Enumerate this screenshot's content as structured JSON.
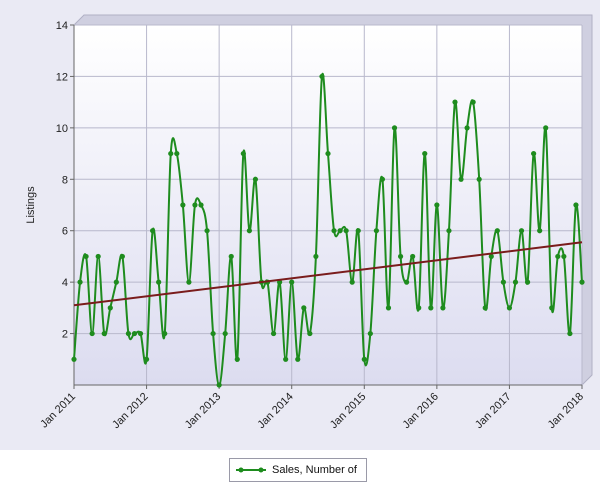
{
  "colors": {
    "series": "#1e8c1e",
    "trend": "#7a1c1c",
    "plot_bg_top": "#ffffff",
    "plot_bg_bottom": "#dcdcf0",
    "grid": "#b8b8cc",
    "panel": "#eaeaf4"
  },
  "chart_data": {
    "type": "line",
    "title": "",
    "xlabel": "",
    "ylabel": "Listings",
    "ylim": [
      0,
      14
    ],
    "yticks": [
      "2",
      "4",
      "6",
      "8",
      "10",
      "12",
      "14"
    ],
    "xticks": [
      "Jan 2011",
      "Jan 2012",
      "Jan 2013",
      "Jan 2014",
      "Jan 2015",
      "Jan 2016",
      "Jan 2017",
      "Jan 2018"
    ],
    "grid": true,
    "legend_position": "bottom-center",
    "x_start": "Jan 2011",
    "x_end": "Jan 2018",
    "series": [
      {
        "name": "Sales, Number of",
        "values": [
          1,
          4,
          5,
          2,
          5,
          2,
          3,
          4,
          5,
          2,
          2,
          2,
          1,
          6,
          4,
          2,
          9,
          9,
          7,
          4,
          7,
          7,
          6,
          2,
          0,
          2,
          5,
          1,
          9,
          6,
          8,
          4,
          4,
          2,
          4,
          1,
          4,
          1,
          3,
          2,
          5,
          12,
          9,
          6,
          6,
          6,
          4,
          6,
          1,
          2,
          6,
          8,
          3,
          10,
          5,
          4,
          5,
          3,
          9,
          3,
          7,
          3,
          6,
          11,
          8,
          10,
          11,
          8,
          3,
          5,
          6,
          4,
          3,
          4,
          6,
          4,
          9,
          6,
          10,
          3,
          5,
          5,
          2,
          7,
          4
        ]
      }
    ],
    "trendline": {
      "start": 3.1,
      "end": 5.55
    }
  }
}
